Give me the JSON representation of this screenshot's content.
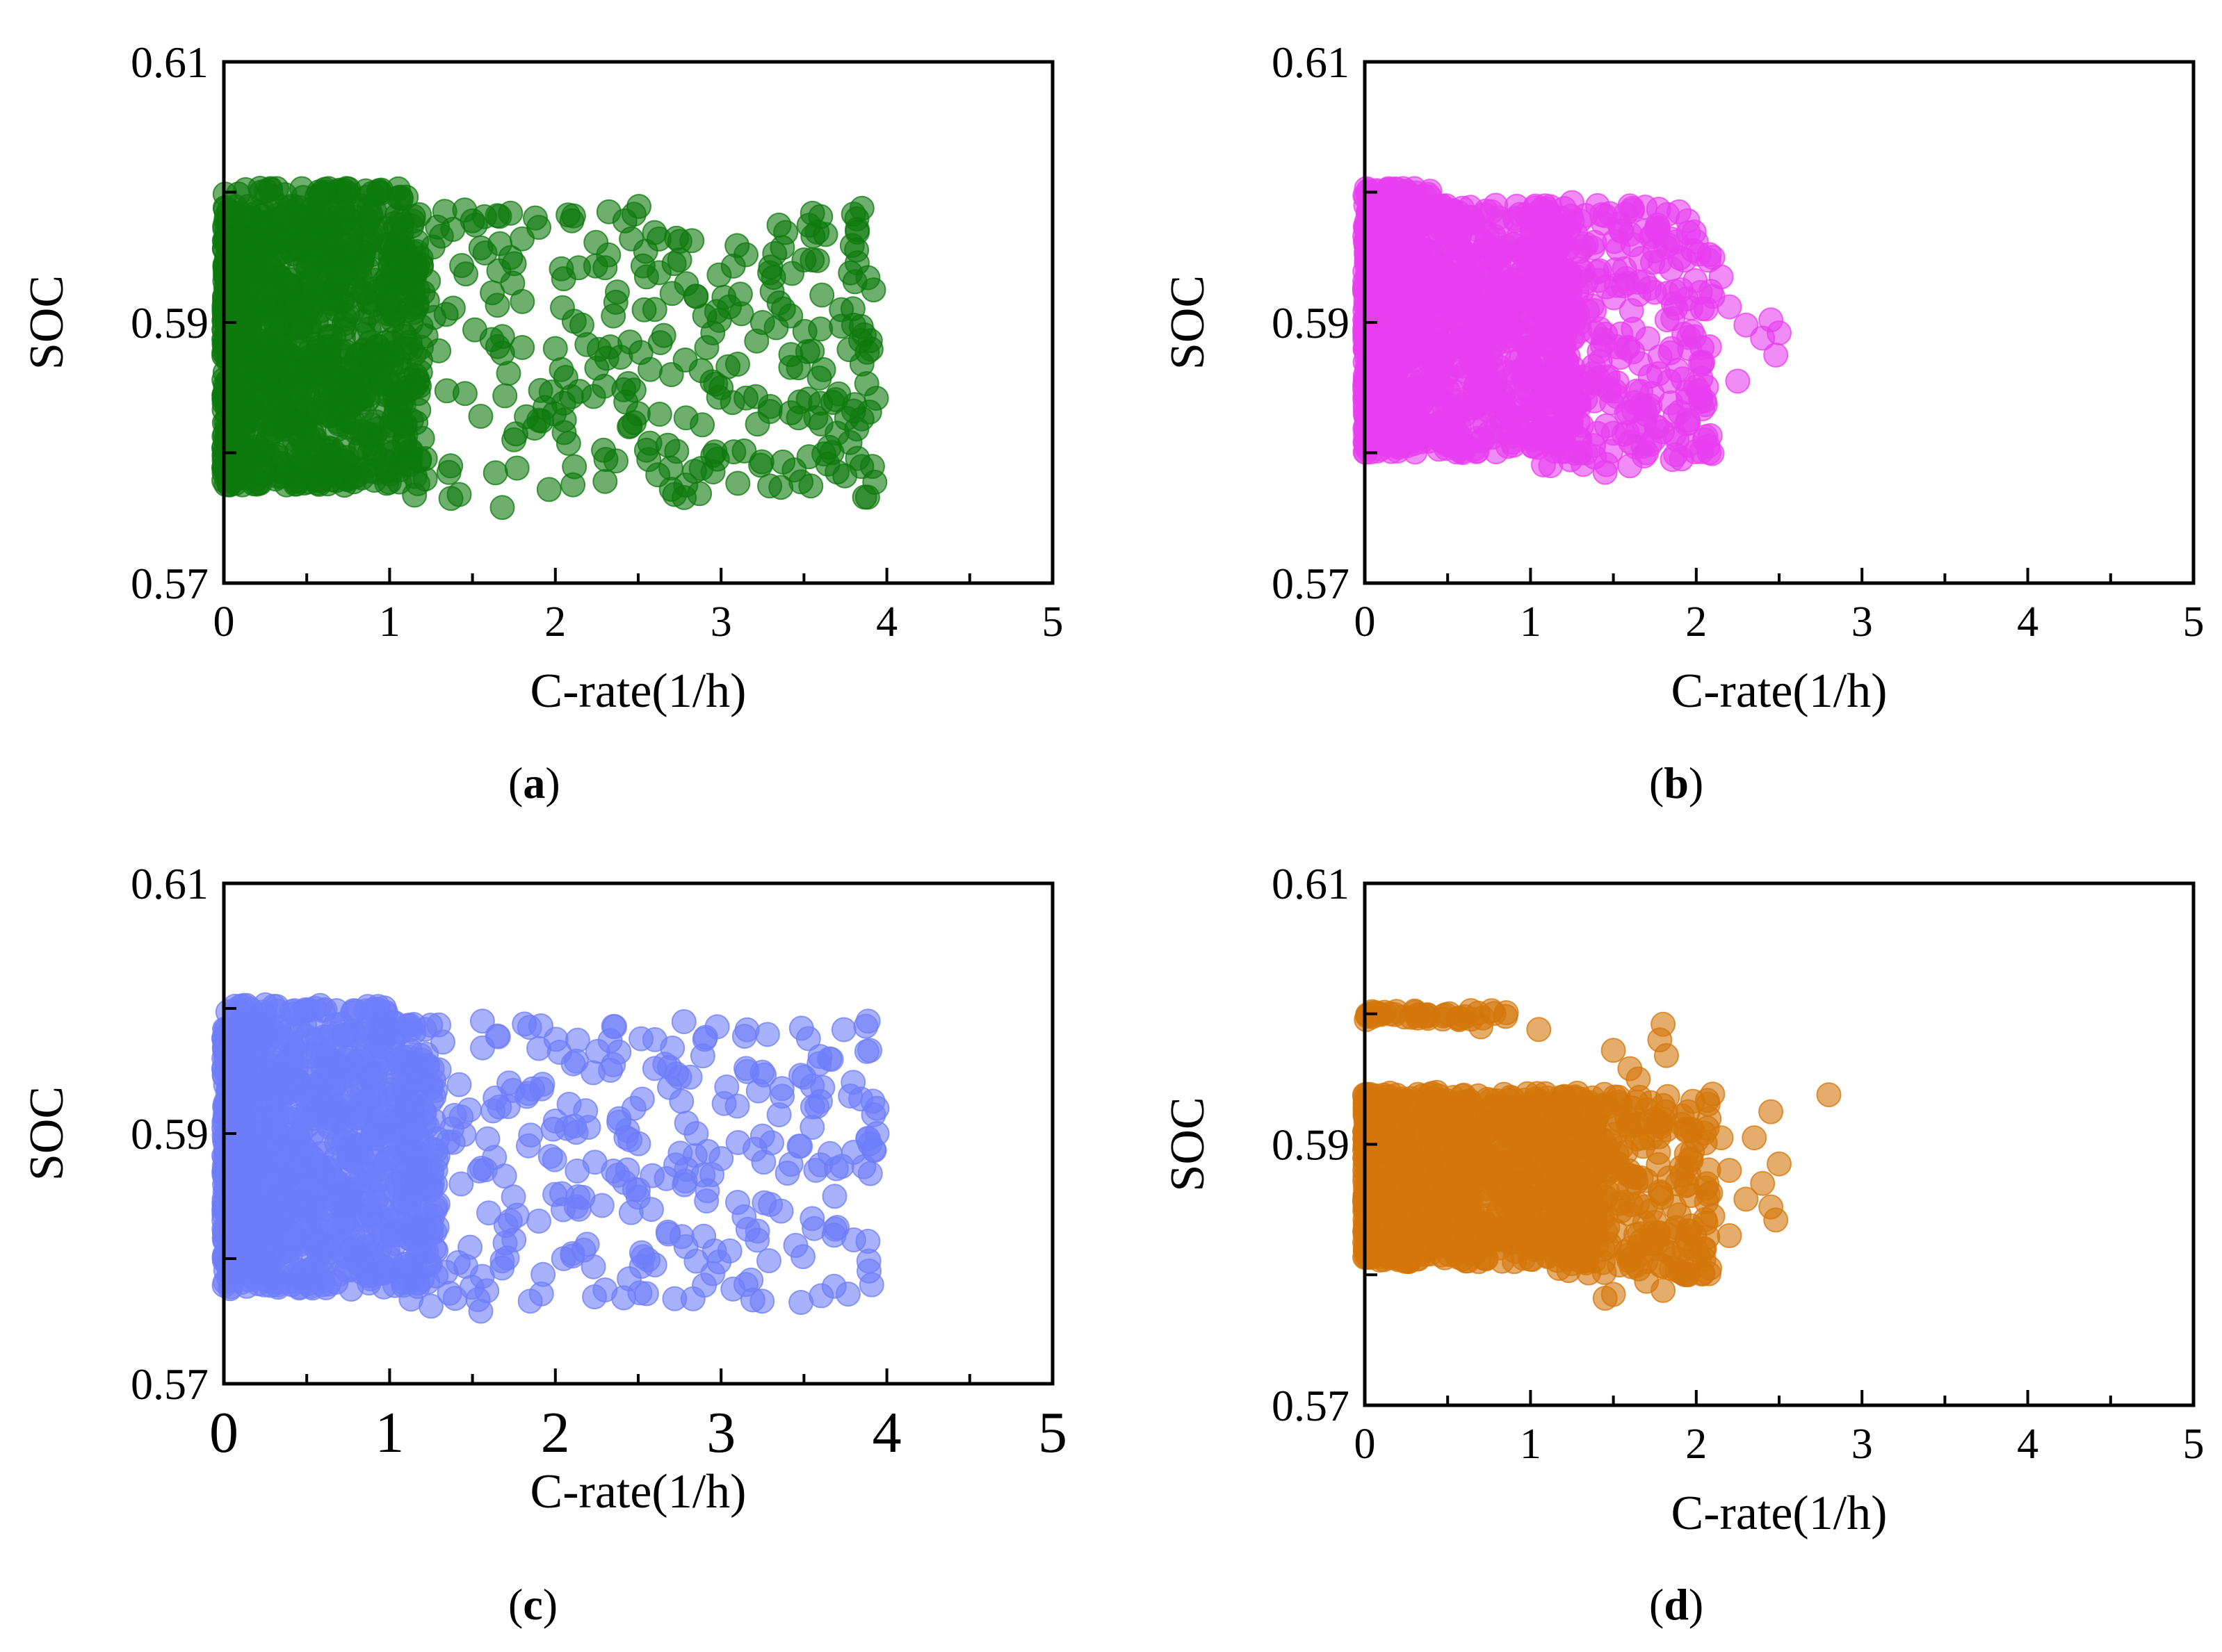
{
  "chart_data": [
    {
      "type": "scatter",
      "panel_label": "a",
      "xlabel": "C-rate(1/h)",
      "ylabel": "SOC",
      "xlim": [
        0,
        5
      ],
      "ylim": [
        0.57,
        0.61
      ],
      "xticks": [
        0,
        1,
        2,
        3,
        4,
        5
      ],
      "yticks": [
        0.57,
        0.59,
        0.61
      ],
      "ytick_labels": [
        "0.57",
        "0.59",
        "0.61"
      ],
      "grid": false,
      "marker_color": "#0e7a0e",
      "cloud": {
        "x_max": 3.95,
        "soc_min": 0.5755,
        "soc_max": 0.6,
        "dense_x": 1.2
      },
      "band_600_x_max": 1.1,
      "points": [
        [
          1.37,
          0.5765
        ],
        [
          1.42,
          0.5768
        ],
        [
          1.68,
          0.5758
        ],
        [
          2.72,
          0.5768
        ],
        [
          2.7,
          0.5772
        ],
        [
          2.3,
          0.5778
        ],
        [
          2.55,
          0.5802
        ],
        [
          2.88,
          0.5788
        ],
        [
          2.95,
          0.5798
        ],
        [
          1.65,
          0.5982
        ],
        [
          1.5,
          0.5978
        ],
        [
          1.9,
          0.5973
        ],
        [
          2.1,
          0.5978
        ],
        [
          2.3,
          0.5942
        ],
        [
          2.55,
          0.5935
        ],
        [
          2.75,
          0.5948
        ],
        [
          3.15,
          0.5952
        ],
        [
          3.5,
          0.5948
        ],
        [
          3.55,
          0.5948
        ],
        [
          3.78,
          0.5938
        ],
        [
          3.92,
          0.5925
        ],
        [
          3.8,
          0.5898
        ],
        [
          3.9,
          0.5886
        ],
        [
          3.6,
          0.5895
        ],
        [
          3.55,
          0.5878
        ],
        [
          3.6,
          0.5838
        ],
        [
          3.8,
          0.5832
        ],
        [
          3.85,
          0.5826
        ],
        [
          3.7,
          0.5815
        ],
        [
          3.22,
          0.5822
        ],
        [
          3.15,
          0.5842
        ],
        [
          3.1,
          0.5868
        ],
        [
          2.95,
          0.5892
        ],
        [
          3.25,
          0.59
        ],
        [
          3.05,
          0.5912
        ],
        [
          2.85,
          0.592
        ],
        [
          2.6,
          0.591
        ],
        [
          2.45,
          0.5885
        ],
        [
          2.25,
          0.5865
        ],
        [
          2.05,
          0.5838
        ],
        [
          2.0,
          0.588
        ],
        [
          1.9,
          0.5825
        ],
        [
          1.75,
          0.581
        ],
        [
          1.55,
          0.5828
        ],
        [
          2.7,
          0.586
        ],
        [
          2.5,
          0.583
        ],
        [
          3.35,
          0.5915
        ],
        [
          3.42,
          0.5905
        ],
        [
          3.0,
          0.585
        ],
        [
          2.35,
          0.5905
        ]
      ]
    },
    {
      "type": "scatter",
      "panel_label": "b",
      "xlabel": "C-rate(1/h)",
      "ylabel": "SOC",
      "xlim": [
        0,
        5
      ],
      "ylim": [
        0.57,
        0.61
      ],
      "xticks": [
        0,
        1,
        2,
        3,
        4,
        5
      ],
      "yticks": [
        0.57,
        0.59,
        0.61
      ],
      "ytick_labels": [
        "0.57",
        "0.59",
        "0.61"
      ],
      "grid": false,
      "marker_color": "#e83ef0",
      "cloud": {
        "x_max": 2.1,
        "soc_min": 0.578,
        "soc_max": 0.6,
        "dense_x": 1.3
      },
      "band_600_x_max": 0.4,
      "points": [
        [
          2.0,
          0.5962
        ],
        [
          2.1,
          0.595
        ],
        [
          2.15,
          0.5935
        ],
        [
          2.2,
          0.5912
        ],
        [
          2.3,
          0.5898
        ],
        [
          2.45,
          0.5902
        ],
        [
          2.5,
          0.5892
        ],
        [
          2.48,
          0.5875
        ],
        [
          2.4,
          0.5888
        ],
        [
          2.25,
          0.5855
        ],
        [
          2.05,
          0.584
        ],
        [
          1.95,
          0.5825
        ],
        [
          1.7,
          0.58
        ],
        [
          1.6,
          0.579
        ],
        [
          1.45,
          0.5785
        ],
        [
          1.25,
          0.5992
        ],
        [
          1.45,
          0.5982
        ],
        [
          1.55,
          0.597
        ],
        [
          1.75,
          0.5955
        ],
        [
          2.1,
          0.592
        ],
        [
          1.85,
          0.588
        ],
        [
          2.05,
          0.581
        ],
        [
          1.5,
          0.5815
        ],
        [
          1.3,
          0.58
        ]
      ]
    },
    {
      "type": "scatter",
      "panel_label": "c",
      "xlabel": "C-rate(1/h)",
      "ylabel": "SOC",
      "xlim": [
        0,
        5
      ],
      "ylim": [
        0.57,
        0.61
      ],
      "xticks": [
        0,
        1,
        2,
        3,
        4,
        5
      ],
      "yticks": [
        0.57,
        0.59,
        0.61
      ],
      "ytick_labels": [
        "0.57",
        "0.59",
        "0.61"
      ],
      "grid": false,
      "marker_color": "#6e7dfa",
      "cloud": {
        "x_max": 3.95,
        "soc_min": 0.5755,
        "soc_max": 0.6,
        "dense_x": 1.3
      },
      "band_600_x_max": 1.0,
      "points": [
        [
          1.25,
          0.5762
        ],
        [
          1.55,
          0.5758
        ],
        [
          2.3,
          0.5775
        ],
        [
          2.55,
          0.5772
        ],
        [
          2.72,
          0.5768
        ],
        [
          2.6,
          0.5795
        ],
        [
          2.85,
          0.5798
        ],
        [
          2.95,
          0.5788
        ],
        [
          1.65,
          0.5978
        ],
        [
          1.9,
          0.5968
        ],
        [
          2.35,
          0.5955
        ],
        [
          2.6,
          0.5952
        ],
        [
          2.75,
          0.5945
        ],
        [
          3.15,
          0.5952
        ],
        [
          3.5,
          0.5945
        ],
        [
          3.55,
          0.5938
        ],
        [
          3.78,
          0.593
        ],
        [
          3.92,
          0.5915
        ],
        [
          3.55,
          0.5905
        ],
        [
          3.8,
          0.5885
        ],
        [
          3.9,
          0.5868
        ],
        [
          3.6,
          0.5875
        ],
        [
          3.55,
          0.5832
        ],
        [
          3.8,
          0.5815
        ],
        [
          3.7,
          0.5825
        ],
        [
          3.22,
          0.5822
        ],
        [
          3.1,
          0.5845
        ],
        [
          3.0,
          0.588
        ],
        [
          3.25,
          0.5898
        ],
        [
          2.85,
          0.59
        ],
        [
          2.45,
          0.5895
        ],
        [
          2.2,
          0.5905
        ],
        [
          2.35,
          0.587
        ],
        [
          2.0,
          0.591
        ],
        [
          1.9,
          0.583
        ],
        [
          1.75,
          0.5815
        ],
        [
          2.05,
          0.58
        ],
        [
          3.35,
          0.5915
        ],
        [
          2.5,
          0.5855
        ]
      ]
    },
    {
      "type": "scatter",
      "panel_label": "d",
      "xlabel": "C-rate(1/h)",
      "ylabel": "SOC",
      "xlim": [
        0,
        5
      ],
      "ylim": [
        0.57,
        0.61
      ],
      "xticks": [
        0,
        1,
        2,
        3,
        4,
        5
      ],
      "yticks": [
        0.57,
        0.59,
        0.61
      ],
      "ytick_labels": [
        "0.57",
        "0.59",
        "0.61"
      ],
      "grid": false,
      "marker_color": "#d4760a",
      "cloud": {
        "x_max": 2.1,
        "soc_min": 0.579,
        "soc_max": 0.595,
        "dense_x": 1.4
      },
      "band_600_x_max": 0.9,
      "points": [
        [
          2.8,
          0.5938
        ],
        [
          2.45,
          0.5925
        ],
        [
          2.5,
          0.5885
        ],
        [
          2.4,
          0.587
        ],
        [
          2.45,
          0.5852
        ],
        [
          2.48,
          0.5842
        ],
        [
          2.3,
          0.5858
        ],
        [
          2.2,
          0.588
        ],
        [
          2.1,
          0.5845
        ],
        [
          2.05,
          0.582
        ],
        [
          1.85,
          0.5805
        ],
        [
          1.7,
          0.5795
        ],
        [
          1.5,
          0.5785
        ],
        [
          1.45,
          0.5782
        ],
        [
          1.8,
          0.5788
        ],
        [
          1.95,
          0.58
        ],
        [
          1.8,
          0.5992
        ],
        [
          1.78,
          0.598
        ],
        [
          1.82,
          0.5968
        ],
        [
          1.6,
          0.5958
        ],
        [
          1.5,
          0.5972
        ],
        [
          0.85,
          0.5998
        ],
        [
          1.05,
          0.5988
        ],
        [
          0.7,
          0.599
        ],
        [
          1.65,
          0.595
        ],
        [
          2.15,
          0.5905
        ],
        [
          1.95,
          0.5925
        ],
        [
          2.35,
          0.5905
        ],
        [
          2.2,
          0.583
        ]
      ]
    }
  ]
}
